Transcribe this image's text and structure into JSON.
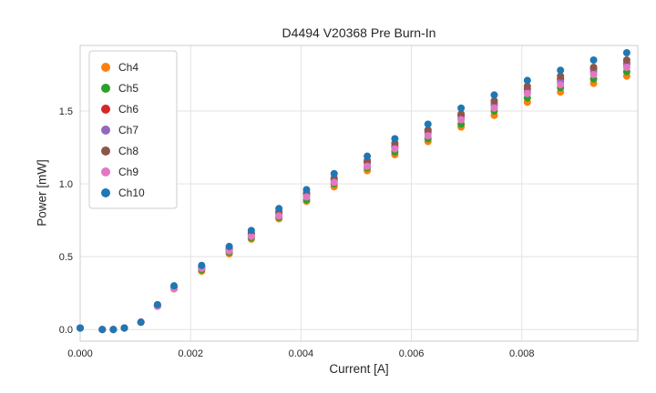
{
  "chart_data": {
    "type": "scatter",
    "title": "D4494 V20368 Pre Burn-In",
    "xlabel": "Current [A]",
    "ylabel": "Power [mW]",
    "xlim": [
      0,
      0.0101
    ],
    "ylim": [
      -0.08,
      1.95
    ],
    "grid": true,
    "legend_position": "upper-left",
    "xticks": [
      0,
      0.002,
      0.004,
      0.006,
      0.008
    ],
    "xtick_labels": [
      "0.000",
      "0.002",
      "0.004",
      "0.006",
      "0.008"
    ],
    "yticks": [
      0,
      0.5,
      1.0,
      1.5
    ],
    "ytick_labels": [
      "0.0",
      "0.5",
      "1.0",
      "1.5"
    ],
    "x": [
      0.0,
      0.0004,
      0.0006,
      0.0008,
      0.0011,
      0.0014,
      0.0017,
      0.0022,
      0.0027,
      0.0031,
      0.0036,
      0.0041,
      0.0046,
      0.0052,
      0.0057,
      0.0063,
      0.0069,
      0.0075,
      0.0081,
      0.0087,
      0.0093,
      0.0099
    ],
    "series": [
      {
        "name": "Ch4",
        "color": "#ff7f0e",
        "y": [
          0.01,
          0.0,
          0.0,
          0.01,
          0.05,
          0.16,
          0.28,
          0.4,
          0.52,
          0.62,
          0.76,
          0.88,
          0.98,
          1.09,
          1.2,
          1.29,
          1.39,
          1.47,
          1.56,
          1.63,
          1.69,
          1.74
        ]
      },
      {
        "name": "Ch5",
        "color": "#2ca02c",
        "y": [
          0.01,
          0.0,
          0.0,
          0.01,
          0.05,
          0.16,
          0.28,
          0.41,
          0.53,
          0.63,
          0.77,
          0.89,
          1.0,
          1.11,
          1.22,
          1.31,
          1.41,
          1.5,
          1.59,
          1.66,
          1.72,
          1.77
        ]
      },
      {
        "name": "Ch6",
        "color": "#d62728",
        "y": [
          0.01,
          0.0,
          0.0,
          0.01,
          0.05,
          0.16,
          0.29,
          0.42,
          0.55,
          0.66,
          0.8,
          0.93,
          1.03,
          1.15,
          1.26,
          1.36,
          1.47,
          1.55,
          1.65,
          1.72,
          1.79,
          1.83
        ]
      },
      {
        "name": "Ch7",
        "color": "#9467bd",
        "y": [
          0.01,
          0.0,
          0.0,
          0.01,
          0.05,
          0.16,
          0.29,
          0.42,
          0.54,
          0.65,
          0.79,
          0.92,
          1.02,
          1.14,
          1.25,
          1.35,
          1.45,
          1.54,
          1.63,
          1.7,
          1.77,
          1.82
        ]
      },
      {
        "name": "Ch8",
        "color": "#8c564b",
        "y": [
          0.01,
          0.0,
          0.0,
          0.01,
          0.05,
          0.17,
          0.29,
          0.43,
          0.56,
          0.66,
          0.81,
          0.94,
          1.04,
          1.16,
          1.28,
          1.37,
          1.48,
          1.57,
          1.67,
          1.74,
          1.8,
          1.85
        ]
      },
      {
        "name": "Ch9",
        "color": "#e377c2",
        "y": [
          0.01,
          0.0,
          0.0,
          0.01,
          0.05,
          0.16,
          0.28,
          0.42,
          0.54,
          0.64,
          0.78,
          0.91,
          1.01,
          1.12,
          1.24,
          1.33,
          1.44,
          1.52,
          1.62,
          1.68,
          1.75,
          1.8
        ]
      },
      {
        "name": "Ch10",
        "color": "#1f77b4",
        "y": [
          0.01,
          0.0,
          0.0,
          0.01,
          0.05,
          0.17,
          0.3,
          0.44,
          0.57,
          0.68,
          0.83,
          0.96,
          1.07,
          1.19,
          1.31,
          1.41,
          1.52,
          1.61,
          1.71,
          1.78,
          1.85,
          1.9
        ]
      }
    ],
    "style": {
      "grid_color": "#e3e3e3",
      "border_color": "#cccccc",
      "background": "#ffffff",
      "marker_radius": 4
    }
  }
}
